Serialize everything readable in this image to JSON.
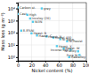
{
  "chart_data": {
    "type": "scatter",
    "xlabel": "Nickel content (%)",
    "ylabel": "Mass loss (g m⁻²)",
    "x": [
      0,
      35,
      0,
      14,
      18,
      22,
      5,
      20,
      28,
      42,
      52,
      62,
      72,
      57,
      67,
      77,
      88,
      90,
      75
    ],
    "values": [
      12000,
      10000,
      3500,
      3000,
      1500,
      800,
      150,
      90,
      60,
      50,
      40,
      30,
      20,
      8,
      5,
      4,
      3,
      1.5,
      1
    ],
    "labels": [
      "Carbon st.",
      "grey",
      "Cast",
      "High",
      "Incoloy (26)",
      "Ni3N",
      "8.8%Ni",
      "Haast. B",
      "Haast. C",
      "Haast. N",
      "Monel 400",
      "Ni base",
      "Ni-Resist",
      "Haast. X",
      "Haast. W",
      "Inconel 600",
      "Ni-alloy",
      "Pure Ni",
      "Hastelloy"
    ],
    "color": "#55ccee",
    "marker": "square",
    "log": "y",
    "xlim": [
      0,
      100
    ],
    "ylim": [
      0.5,
      30000
    ],
    "xticks": [
      0,
      20,
      40,
      60,
      80,
      100
    ],
    "yticks": [
      {
        "value": 1,
        "label": "10⁰"
      },
      {
        "value": 10,
        "label": "10¹"
      },
      {
        "value": 100,
        "label": "10²"
      },
      {
        "value": 1000,
        "label": "10³"
      },
      {
        "value": 10000,
        "label": "10⁴"
      }
    ],
    "grid": true
  }
}
